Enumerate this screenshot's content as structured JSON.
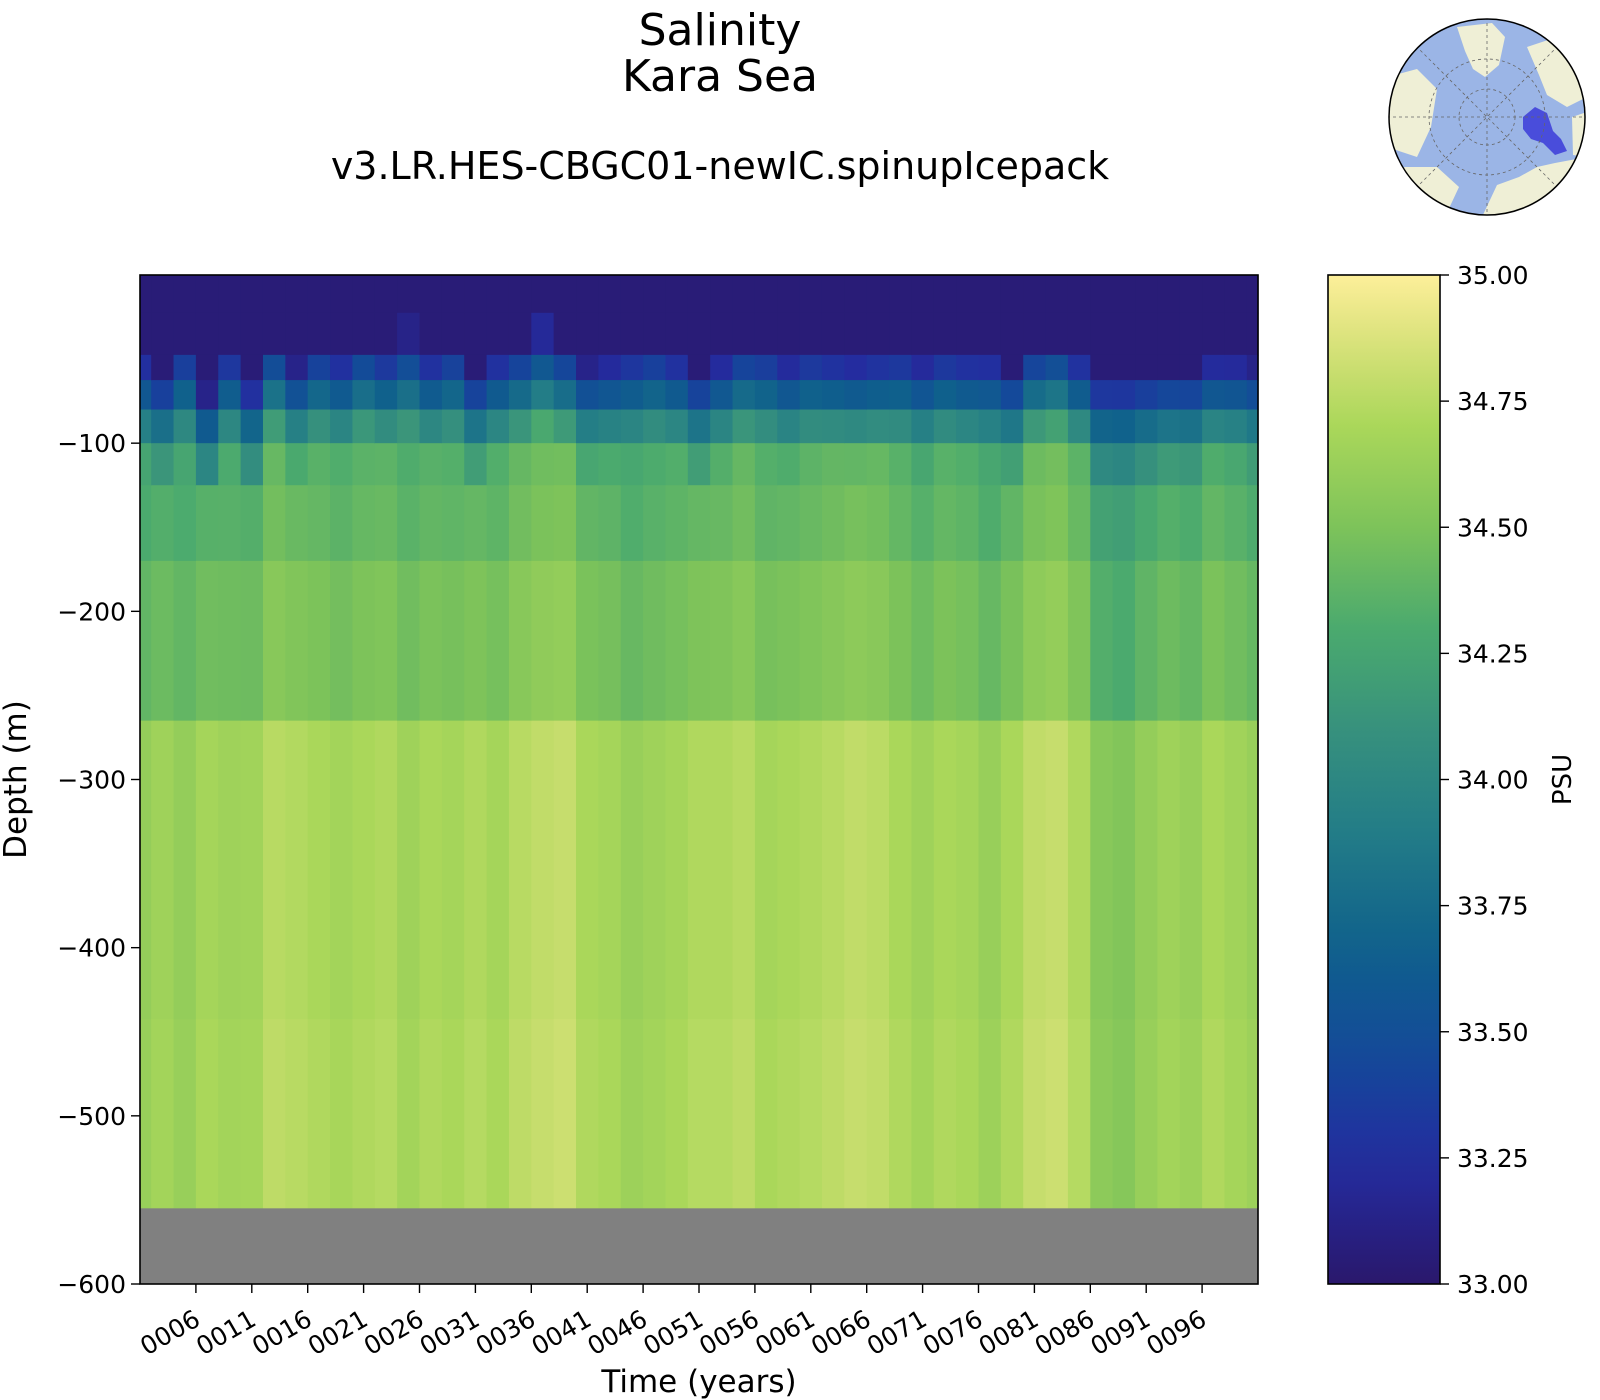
{
  "chart_data": {
    "type": "heatmap",
    "title": "Salinity",
    "region": "Kara Sea",
    "subtitle": "v3.LR.HES-CBGC01-newIC.spinupIcepack",
    "xlabel": "Time (years)",
    "ylabel": "Depth (m)",
    "colorbar_label": "PSU",
    "colormap": "haline",
    "xlim": [
      1,
      101
    ],
    "ylim": [
      -600,
      0
    ],
    "clim": [
      33.0,
      35.0
    ],
    "x_ticks": [
      6,
      11,
      16,
      21,
      26,
      31,
      36,
      41,
      46,
      51,
      56,
      61,
      66,
      71,
      76,
      81,
      86,
      91,
      96
    ],
    "x_tick_labels": [
      "0006",
      "0011",
      "0016",
      "0021",
      "0026",
      "0031",
      "0036",
      "0041",
      "0046",
      "0051",
      "0056",
      "0061",
      "0066",
      "0071",
      "0076",
      "0081",
      "0086",
      "0091",
      "0096"
    ],
    "y_ticks": [
      -100,
      -200,
      -300,
      -400,
      -500,
      -600
    ],
    "y_tick_labels": [
      "−100",
      "−200",
      "−300",
      "−400",
      "−500",
      "−600"
    ],
    "colorbar_ticks": [
      35.0,
      34.75,
      34.5,
      34.25,
      34.0,
      33.75,
      33.5,
      33.25,
      33.0
    ],
    "colorbar_tick_labels": [
      "35.00",
      "34.75",
      "34.50",
      "34.25",
      "34.00",
      "33.75",
      "33.50",
      "33.25",
      "33.00"
    ],
    "bottom_depth": -555,
    "no_data_color": "#808080",
    "depth_levels": [
      -5,
      -40,
      -55,
      -70,
      -90,
      -110,
      -140,
      -200,
      -330,
      -555
    ],
    "time_points": [
      1,
      3,
      5,
      7,
      9,
      11,
      13,
      15,
      17,
      19,
      21,
      23,
      25,
      27,
      29,
      31,
      33,
      35,
      37,
      39,
      41,
      43,
      45,
      47,
      49,
      51,
      53,
      55,
      57,
      59,
      61,
      63,
      65,
      67,
      69,
      71,
      73,
      75,
      77,
      79,
      81,
      83,
      85,
      87,
      89,
      91,
      93,
      95,
      97,
      99,
      101
    ],
    "salinity_at_340m": [
      34.6,
      34.65,
      34.6,
      34.68,
      34.65,
      34.66,
      34.75,
      34.73,
      34.7,
      34.67,
      34.7,
      34.72,
      34.65,
      34.7,
      34.68,
      34.72,
      34.68,
      34.75,
      34.78,
      34.8,
      34.7,
      34.68,
      34.62,
      34.65,
      34.68,
      34.72,
      34.72,
      34.75,
      34.68,
      34.7,
      34.72,
      34.75,
      34.78,
      34.76,
      34.7,
      34.65,
      34.7,
      34.68,
      34.62,
      34.7,
      34.78,
      34.8,
      34.72,
      34.55,
      34.52,
      34.6,
      34.65,
      34.62,
      34.7,
      34.66,
      34.62
    ],
    "mixed_layer_depth": [
      60,
      70,
      55,
      80,
      58,
      75,
      52,
      65,
      55,
      60,
      52,
      58,
      50,
      60,
      55,
      70,
      60,
      55,
      48,
      55,
      65,
      62,
      58,
      55,
      60,
      70,
      62,
      55,
      56,
      62,
      58,
      60,
      62,
      60,
      58,
      62,
      58,
      60,
      60,
      68,
      55,
      52,
      60,
      72,
      72,
      70,
      68,
      68,
      62,
      62,
      65
    ]
  },
  "inset_map": {
    "ocean_color": "#9bb5e6",
    "land_color": "#efefd6",
    "region_color": "#3b3bd8"
  }
}
